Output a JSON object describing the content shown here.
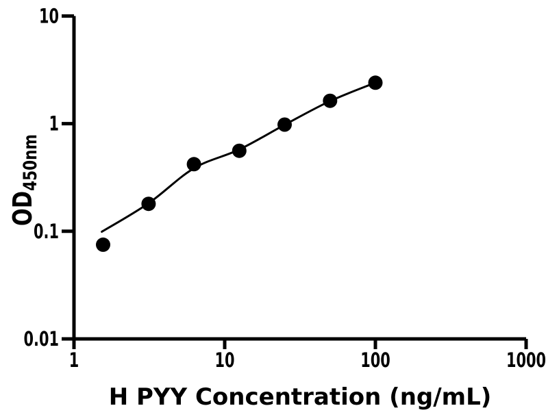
{
  "chart_data": {
    "type": "scatter",
    "title": "",
    "xlabel": "H PYY Concentration (ng/mL)",
    "ylabel_main": "OD",
    "ylabel_sub": "450nm",
    "ylabel_full": "OD450nm",
    "x_scale": "log",
    "y_scale": "log",
    "xlim": [
      1,
      1000
    ],
    "ylim": [
      0.01,
      10
    ],
    "x_tick_values": [
      1,
      10,
      100,
      1000
    ],
    "x_tick_labels": [
      "1",
      "10",
      "100",
      "1000"
    ],
    "y_tick_values": [
      0.01,
      0.1,
      1,
      10
    ],
    "y_tick_labels": [
      "0.01",
      "0.1",
      "1",
      "10"
    ],
    "grid": false,
    "legend_visible": false,
    "background_color": "#ffffff",
    "axis_color": "#000000",
    "marker_color": "#000000",
    "curve_color": "#000000",
    "marker_shape": "circle",
    "points": [
      {
        "x": 1.56,
        "y": 0.075
      },
      {
        "x": 3.125,
        "y": 0.18
      },
      {
        "x": 6.25,
        "y": 0.42
      },
      {
        "x": 12.5,
        "y": 0.56
      },
      {
        "x": 25,
        "y": 0.98
      },
      {
        "x": 50,
        "y": 1.63
      },
      {
        "x": 100,
        "y": 2.4
      }
    ],
    "fit_curve_points": [
      {
        "x": 1.53,
        "y": 0.099
      },
      {
        "x": 3.125,
        "y": 0.182
      },
      {
        "x": 6.25,
        "y": 0.385
      },
      {
        "x": 12.5,
        "y": 0.575
      },
      {
        "x": 25,
        "y": 0.975
      },
      {
        "x": 50,
        "y": 1.62
      },
      {
        "x": 100,
        "y": 2.4
      }
    ]
  }
}
